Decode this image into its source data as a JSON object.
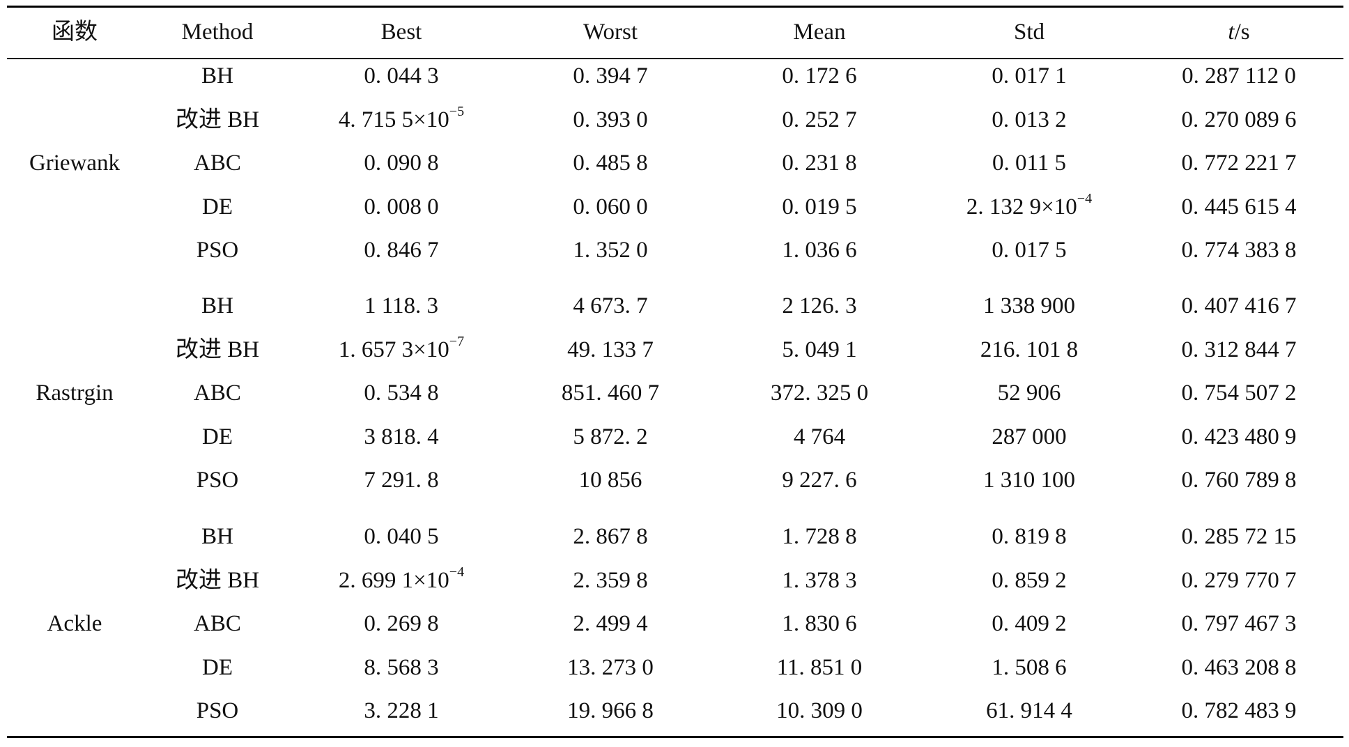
{
  "table": {
    "headers": [
      "函数",
      "Method",
      "Best",
      "Worst",
      "Mean",
      "Std",
      "t/s"
    ],
    "groups": [
      {
        "function": "Griewank",
        "rows": [
          {
            "method": "BH",
            "best": "0. 044 3",
            "best_exp": "",
            "worst": "0. 394 7",
            "mean": "0. 172 6",
            "std": "0. 017 1",
            "std_exp": "",
            "t": "0. 287 112 0"
          },
          {
            "method": "改进 BH",
            "best": "4. 715 5×10",
            "best_exp": "−5",
            "worst": "0. 393 0",
            "mean": "0. 252 7",
            "std": "0. 013 2",
            "std_exp": "",
            "t": "0. 270 089 6"
          },
          {
            "method": "ABC",
            "best": "0. 090 8",
            "best_exp": "",
            "worst": "0. 485 8",
            "mean": "0. 231 8",
            "std": "0. 011 5",
            "std_exp": "",
            "t": "0. 772 221 7"
          },
          {
            "method": "DE",
            "best": "0. 008 0",
            "best_exp": "",
            "worst": "0. 060 0",
            "mean": "0. 019 5",
            "std": "2. 132 9×10",
            "std_exp": "−4",
            "t": "0. 445 615 4"
          },
          {
            "method": "PSO",
            "best": "0. 846 7",
            "best_exp": "",
            "worst": "1. 352 0",
            "mean": "1. 036 6",
            "std": "0. 017 5",
            "std_exp": "",
            "t": "0. 774 383 8"
          }
        ]
      },
      {
        "function": "Rastrgin",
        "rows": [
          {
            "method": "BH",
            "best": "1 118. 3",
            "best_exp": "",
            "worst": "4 673. 7",
            "mean": "2 126. 3",
            "std": "1 338 900",
            "std_exp": "",
            "t": "0. 407 416 7"
          },
          {
            "method": "改进 BH",
            "best": "1. 657 3×10",
            "best_exp": "−7",
            "worst": "49. 133 7",
            "mean": "5. 049 1",
            "std": "216. 101 8",
            "std_exp": "",
            "t": "0. 312 844 7"
          },
          {
            "method": "ABC",
            "best": "0. 534 8",
            "best_exp": "",
            "worst": "851. 460 7",
            "mean": "372. 325 0",
            "std": "52 906",
            "std_exp": "",
            "t": "0. 754 507 2"
          },
          {
            "method": "DE",
            "best": "3 818. 4",
            "best_exp": "",
            "worst": "5 872. 2",
            "mean": "4 764",
            "std": "287 000",
            "std_exp": "",
            "t": "0. 423 480 9"
          },
          {
            "method": "PSO",
            "best": "7 291. 8",
            "best_exp": "",
            "worst": "10 856",
            "mean": "9 227. 6",
            "std": "1 310 100",
            "std_exp": "",
            "t": "0. 760 789 8"
          }
        ]
      },
      {
        "function": "Ackle",
        "rows": [
          {
            "method": "BH",
            "best": "0. 040 5",
            "best_exp": "",
            "worst": "2. 867 8",
            "mean": "1. 728 8",
            "std": "0. 819 8",
            "std_exp": "",
            "t": "0. 285 72 15"
          },
          {
            "method": "改进 BH",
            "best": "2. 699 1×10",
            "best_exp": "−4",
            "worst": "2. 359 8",
            "mean": "1. 378 3",
            "std": "0. 859 2",
            "std_exp": "",
            "t": "0. 279 770 7"
          },
          {
            "method": "ABC",
            "best": "0. 269 8",
            "best_exp": "",
            "worst": "2. 499 4",
            "mean": "1. 830 6",
            "std": "0. 409 2",
            "std_exp": "",
            "t": "0. 797 467 3"
          },
          {
            "method": "DE",
            "best": "8. 568 3",
            "best_exp": "",
            "worst": "13. 273 0",
            "mean": "11. 851 0",
            "std": "1. 508 6",
            "std_exp": "",
            "t": "0. 463 208 8"
          },
          {
            "method": "PSO",
            "best": "3. 228 1",
            "best_exp": "",
            "worst": "19. 966 8",
            "mean": "10. 309 0",
            "std": "61. 914 4",
            "std_exp": "",
            "t": "0. 782 483 9"
          }
        ]
      }
    ]
  }
}
